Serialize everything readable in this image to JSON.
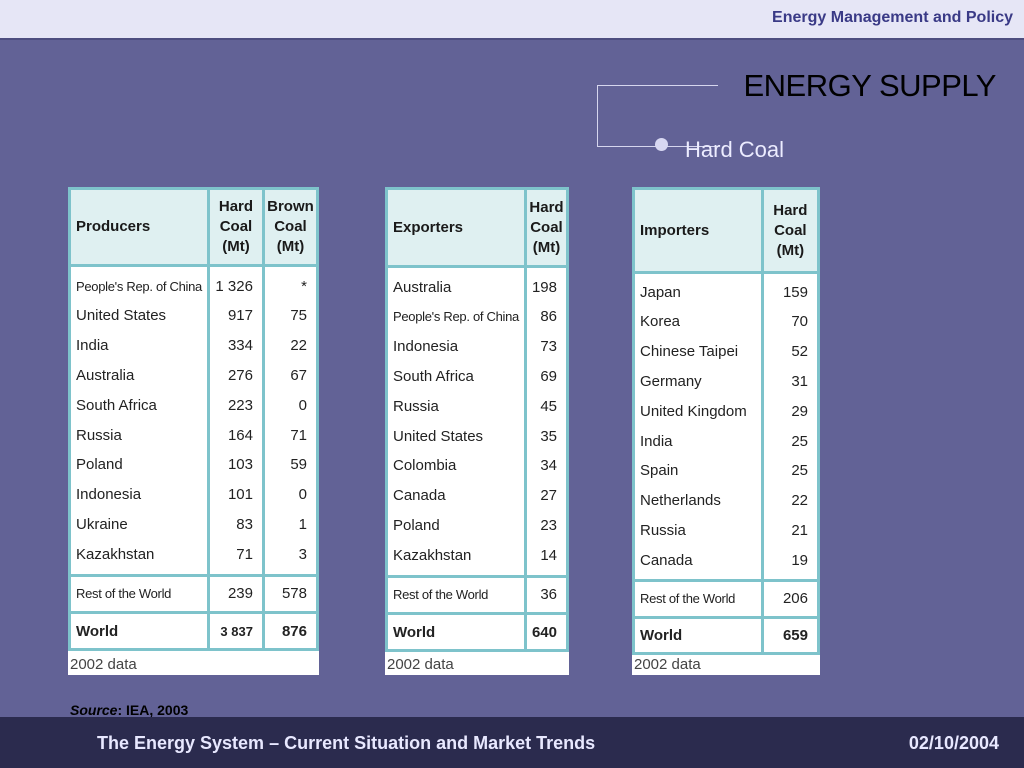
{
  "header": {
    "title": "Energy Management and Policy"
  },
  "slide": {
    "title": "ENERGY SUPPLY",
    "subtitle": "Hard Coal"
  },
  "producers": {
    "headers": [
      "Producers",
      "Hard Coal (Mt)",
      "Brown Coal (Mt)"
    ],
    "rows": [
      [
        "People's Rep. of China",
        "1 326",
        "*"
      ],
      [
        "United States",
        "917",
        "75"
      ],
      [
        "India",
        "334",
        "22"
      ],
      [
        "Australia",
        "276",
        "67"
      ],
      [
        "South Africa",
        "223",
        "0"
      ],
      [
        "Russia",
        "164",
        "71"
      ],
      [
        "Poland",
        "103",
        "59"
      ],
      [
        "Indonesia",
        "101",
        "0"
      ],
      [
        "Ukraine",
        "83",
        "1"
      ],
      [
        "Kazakhstan",
        "71",
        "3"
      ]
    ],
    "rest": [
      "Rest of the World",
      "239",
      "578"
    ],
    "world": [
      "World",
      "3 837",
      "876"
    ],
    "note": "2002 data"
  },
  "exporters": {
    "headers": [
      "Exporters",
      "Hard Coal (Mt)"
    ],
    "rows": [
      [
        "Australia",
        "198"
      ],
      [
        "People's Rep. of China",
        "86"
      ],
      [
        "Indonesia",
        "73"
      ],
      [
        "South Africa",
        "69"
      ],
      [
        "Russia",
        "45"
      ],
      [
        "United States",
        "35"
      ],
      [
        "Colombia",
        "34"
      ],
      [
        "Canada",
        "27"
      ],
      [
        "Poland",
        "23"
      ],
      [
        "Kazakhstan",
        "14"
      ]
    ],
    "rest": [
      "Rest of the World",
      "36"
    ],
    "world": [
      "World",
      "640"
    ],
    "note": "2002 data"
  },
  "importers": {
    "headers": [
      "Importers",
      "Hard Coal (Mt)"
    ],
    "rows": [
      [
        "Japan",
        "159"
      ],
      [
        "Korea",
        "70"
      ],
      [
        "Chinese Taipei",
        "52"
      ],
      [
        "Germany",
        "31"
      ],
      [
        "United Kingdom",
        "29"
      ],
      [
        "India",
        "25"
      ],
      [
        "Spain",
        "25"
      ],
      [
        "Netherlands",
        "22"
      ],
      [
        "Russia",
        "21"
      ],
      [
        "Canada",
        "19"
      ]
    ],
    "rest": [
      "Rest of the World",
      "206"
    ],
    "world": [
      "World",
      "659"
    ],
    "note": "2002 data"
  },
  "source": {
    "label": "Source",
    "text": ": IEA, 2003"
  },
  "footer": {
    "left": "The Energy System – Current Situation and Market Trends",
    "right": "02/10/2004"
  }
}
